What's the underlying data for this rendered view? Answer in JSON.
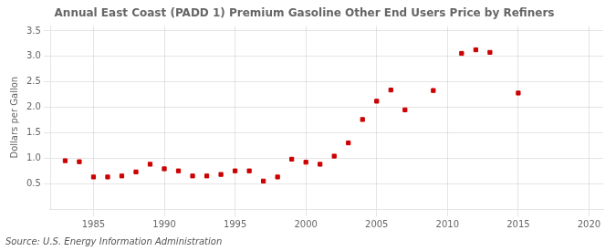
{
  "chart_data": {
    "type": "scatter",
    "title": "Annual East Coast (PADD 1) Premium Gasoline Other End Users Price by Refiners",
    "ylabel": "Dollars per Gallon",
    "annotations": [
      "Source: U.S. Energy Information Administration"
    ],
    "color": "#cc0000",
    "marker": "square",
    "grid": true,
    "x": [
      1983,
      1984,
      1985,
      1986,
      1987,
      1988,
      1989,
      1990,
      1991,
      1992,
      1993,
      1994,
      1995,
      1996,
      1997,
      1998,
      1999,
      2000,
      2001,
      2002,
      2003,
      2004,
      2005,
      2006,
      2007,
      2009,
      2011,
      2012,
      2013,
      2015
    ],
    "values": [
      0.95,
      0.93,
      0.63,
      0.63,
      0.65,
      0.73,
      0.88,
      0.79,
      0.75,
      0.65,
      0.65,
      0.68,
      0.75,
      0.75,
      0.55,
      0.63,
      0.98,
      0.92,
      0.88,
      1.04,
      1.3,
      1.76,
      2.12,
      2.34,
      1.95,
      2.33,
      3.06,
      3.13,
      3.08,
      2.28
    ],
    "xlim": [
      1982,
      2021
    ],
    "xticks": [
      1985,
      1990,
      1995,
      2000,
      2005,
      2010,
      2015,
      2020
    ],
    "ylim": [
      0.0,
      3.6
    ],
    "yticks": [
      0.5,
      {
        "value": 1.0,
        "label": "1.0"
      },
      1.5,
      {
        "value": 2.0,
        "label": "2.0"
      },
      2.5,
      {
        "value": 3.0,
        "label": "3.0"
      },
      3.5
    ]
  }
}
